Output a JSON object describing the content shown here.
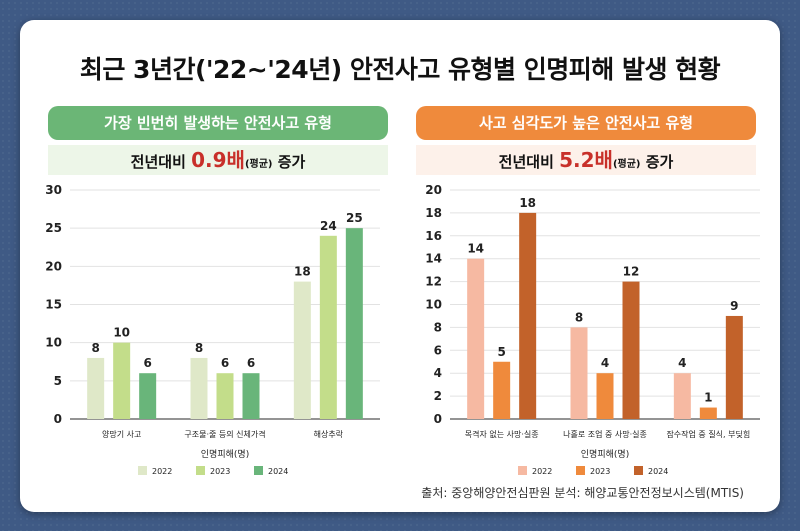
{
  "title": "최근 3년간('22~'24년) 안전사고 유형별  인명피해 발생 현황",
  "left": {
    "pill_label": "가장 빈번히 발생하는 안전사고 유형",
    "increase": {
      "prefix": "전년대비 ",
      "value": "0.9배",
      "note": "(평균)",
      "suffix": " 증가"
    }
  },
  "right": {
    "pill_label": "사고 심각도가 높은 안전사고 유형",
    "increase": {
      "prefix": "전년대비 ",
      "value": "5.2배",
      "note": "(평균)",
      "suffix": " 증가"
    }
  },
  "source": "출처: 중앙해양안전심판원   분석: 해양교통안전정보시스템(MTIS)",
  "chart_data": [
    {
      "type": "bar",
      "categories": [
        "양망기 사고",
        "구조물·줄 등의 신체가격",
        "해상추락"
      ],
      "series": [
        {
          "name": "2022",
          "values": [
            8,
            8,
            18
          ],
          "color": "#dfe8c8"
        },
        {
          "name": "2023",
          "values": [
            10,
            6,
            24
          ],
          "color": "#c3dd8a"
        },
        {
          "name": "2024",
          "values": [
            6,
            6,
            25
          ],
          "color": "#69b57a"
        }
      ],
      "xlabel": "인명피해(명)",
      "ylim": [
        0,
        30
      ],
      "yticks": [
        0,
        5,
        10,
        15,
        20,
        25,
        30
      ],
      "grid": true,
      "legend": "bottom"
    },
    {
      "type": "bar",
      "categories": [
        "목격자 없는 사망·실종",
        "나홀로 조업 중 사망·실종",
        "잠수작업 중 질식, 부딪힘"
      ],
      "series": [
        {
          "name": "2022",
          "values": [
            14,
            8,
            4
          ],
          "color": "#f6b9a2"
        },
        {
          "name": "2023",
          "values": [
            5,
            4,
            1
          ],
          "color": "#ef8a3c"
        },
        {
          "name": "2024",
          "values": [
            18,
            12,
            9
          ],
          "color": "#c2622a"
        }
      ],
      "xlabel": "인명피해(명)",
      "ylim": [
        0,
        20
      ],
      "yticks": [
        0,
        2,
        4,
        6,
        8,
        10,
        12,
        14,
        16,
        18,
        20
      ],
      "grid": true,
      "legend": "bottom"
    }
  ]
}
